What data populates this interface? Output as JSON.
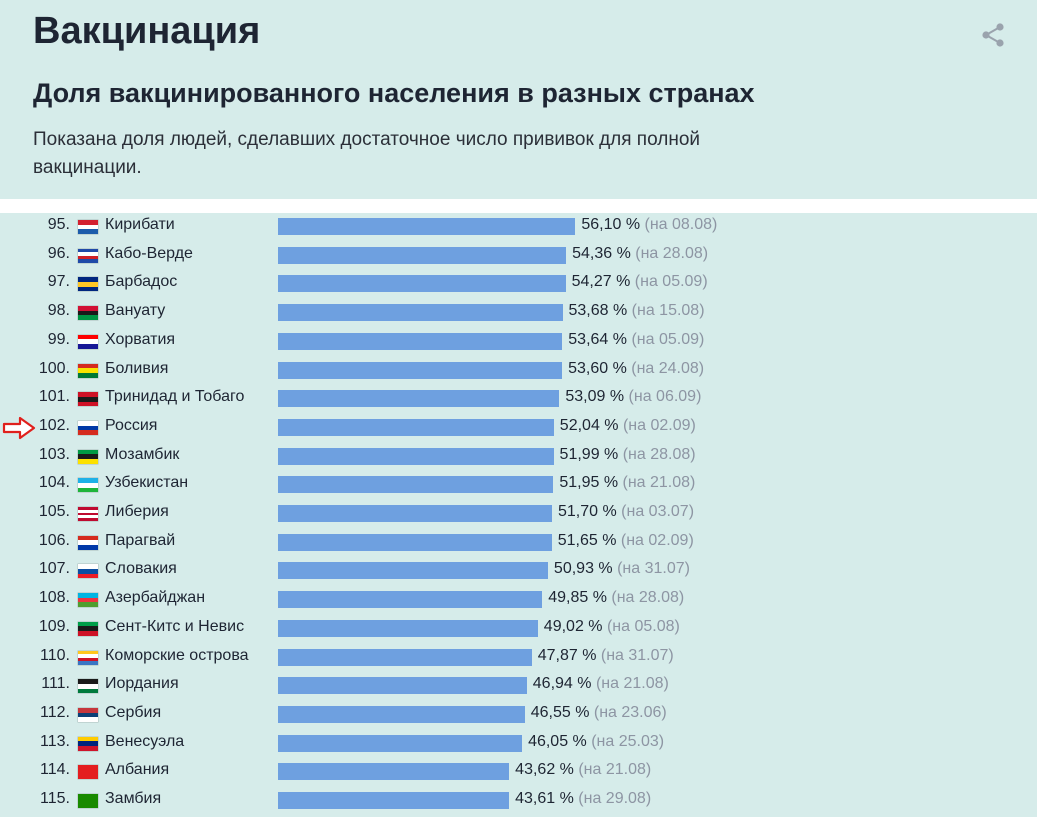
{
  "header": {
    "title": "Вакцинация",
    "subtitle": "Доля вакцинированного населения в разных странах",
    "description": "Показана доля людей, сделавших достаточное число прививок для полной вакцинации.",
    "share_icon": "share-icon"
  },
  "colors": {
    "background": "#d6ecea",
    "bar": "#6ea0e0",
    "date_text": "#8d95a3",
    "highlight_arrow": "#e0201c"
  },
  "highlighted_row": "Россия",
  "chart_data": {
    "type": "bar",
    "orientation": "horizontal",
    "title": "Доля вакцинированного населения в разных странах",
    "unit": "%",
    "xlim": [
      0,
      100
    ],
    "rows": [
      {
        "rank": "95.",
        "country": "Кирибати",
        "value": 56.1,
        "label": "56,10 %",
        "date": "(на 08.08)",
        "flag": [
          "#d32030",
          "#ffffff",
          "#1c5cab"
        ]
      },
      {
        "rank": "96.",
        "country": "Кабо-Верде",
        "value": 54.36,
        "label": "54,36 %",
        "date": "(на 28.08)",
        "flag": [
          "#1f4aa8",
          "#ffffff",
          "#cf2027",
          "#1f4aa8"
        ]
      },
      {
        "rank": "97.",
        "country": "Барбадос",
        "value": 54.27,
        "label": "54,27 %",
        "date": "(на 05.09)",
        "flag": [
          "#00267f",
          "#ffc726",
          "#00267f"
        ]
      },
      {
        "rank": "98.",
        "country": "Вануату",
        "value": 53.68,
        "label": "53,68 %",
        "date": "(на 15.08)",
        "flag": [
          "#d21034",
          "#1a1a1a",
          "#009543"
        ]
      },
      {
        "rank": "99.",
        "country": "Хорватия",
        "value": 53.64,
        "label": "53,64 %",
        "date": "(на 05.09)",
        "flag": [
          "#ff0000",
          "#ffffff",
          "#171796"
        ]
      },
      {
        "rank": "100.",
        "country": "Боливия",
        "value": 53.6,
        "label": "53,60 %",
        "date": "(на 24.08)",
        "flag": [
          "#d52b1e",
          "#f9e300",
          "#007934"
        ]
      },
      {
        "rank": "101.",
        "country": "Тринидад и Тобаго",
        "value": 53.09,
        "label": "53,09 %",
        "date": "(на 06.09)",
        "flag": [
          "#ce1126",
          "#1a1a1a",
          "#ce1126"
        ]
      },
      {
        "rank": "102.",
        "country": "Россия",
        "value": 52.04,
        "label": "52,04 %",
        "date": "(на 02.09)",
        "flag": [
          "#ffffff",
          "#0039a6",
          "#d52b1e"
        ]
      },
      {
        "rank": "103.",
        "country": "Мозамбик",
        "value": 51.99,
        "label": "51,99 %",
        "date": "(на 28.08)",
        "flag": [
          "#009a44",
          "#1a1a1a",
          "#fce100"
        ]
      },
      {
        "rank": "104.",
        "country": "Узбекистан",
        "value": 51.95,
        "label": "51,95 %",
        "date": "(на 21.08)",
        "flag": [
          "#1eb1e7",
          "#ffffff",
          "#1eb53a"
        ]
      },
      {
        "rank": "105.",
        "country": "Либерия",
        "value": 51.7,
        "label": "51,70 %",
        "date": "(на 03.07)",
        "flag": [
          "#bf0a30",
          "#ffffff",
          "#bf0a30",
          "#ffffff",
          "#bf0a30"
        ]
      },
      {
        "rank": "106.",
        "country": "Парагвай",
        "value": 51.65,
        "label": "51,65 %",
        "date": "(на 02.09)",
        "flag": [
          "#d52b1e",
          "#ffffff",
          "#0038a8"
        ]
      },
      {
        "rank": "107.",
        "country": "Словакия",
        "value": 50.93,
        "label": "50,93 %",
        "date": "(на 31.07)",
        "flag": [
          "#ffffff",
          "#0b4ea2",
          "#ee1c25"
        ]
      },
      {
        "rank": "108.",
        "country": "Азербайджан",
        "value": 49.85,
        "label": "49,85 %",
        "date": "(на 28.08)",
        "flag": [
          "#00b5e2",
          "#ef3340",
          "#509e2f"
        ]
      },
      {
        "rank": "109.",
        "country": "Сент-Китс и Невис",
        "value": 49.02,
        "label": "49,02 %",
        "date": "(на 05.08)",
        "flag": [
          "#009e49",
          "#1a1a1a",
          "#ce1126"
        ]
      },
      {
        "rank": "110.",
        "country": "Коморские острова",
        "value": 47.87,
        "label": "47,87 %",
        "date": "(на 31.07)",
        "flag": [
          "#ffc61e",
          "#ffffff",
          "#ce1126",
          "#3a75c4"
        ]
      },
      {
        "rank": "111.",
        "country": "Иордания",
        "value": 46.94,
        "label": "46,94 %",
        "date": "(на 21.08)",
        "flag": [
          "#1a1a1a",
          "#ffffff",
          "#007a3d"
        ]
      },
      {
        "rank": "112.",
        "country": "Сербия",
        "value": 46.55,
        "label": "46,55 %",
        "date": "(на 23.06)",
        "flag": [
          "#c6363c",
          "#0c4076",
          "#ffffff"
        ]
      },
      {
        "rank": "113.",
        "country": "Венесуэла",
        "value": 46.05,
        "label": "46,05 %",
        "date": "(на 25.03)",
        "flag": [
          "#ffcc00",
          "#00247d",
          "#cf142b"
        ]
      },
      {
        "rank": "114.",
        "country": "Албания",
        "value": 43.62,
        "label": "43,62 %",
        "date": "(на 21.08)",
        "flag": [
          "#e41e20",
          "#e41e20",
          "#e41e20"
        ]
      },
      {
        "rank": "115.",
        "country": "Замбия",
        "value": 43.61,
        "label": "43,61 %",
        "date": "(на 29.08)",
        "flag": [
          "#198a00",
          "#198a00",
          "#198a00"
        ]
      }
    ]
  }
}
